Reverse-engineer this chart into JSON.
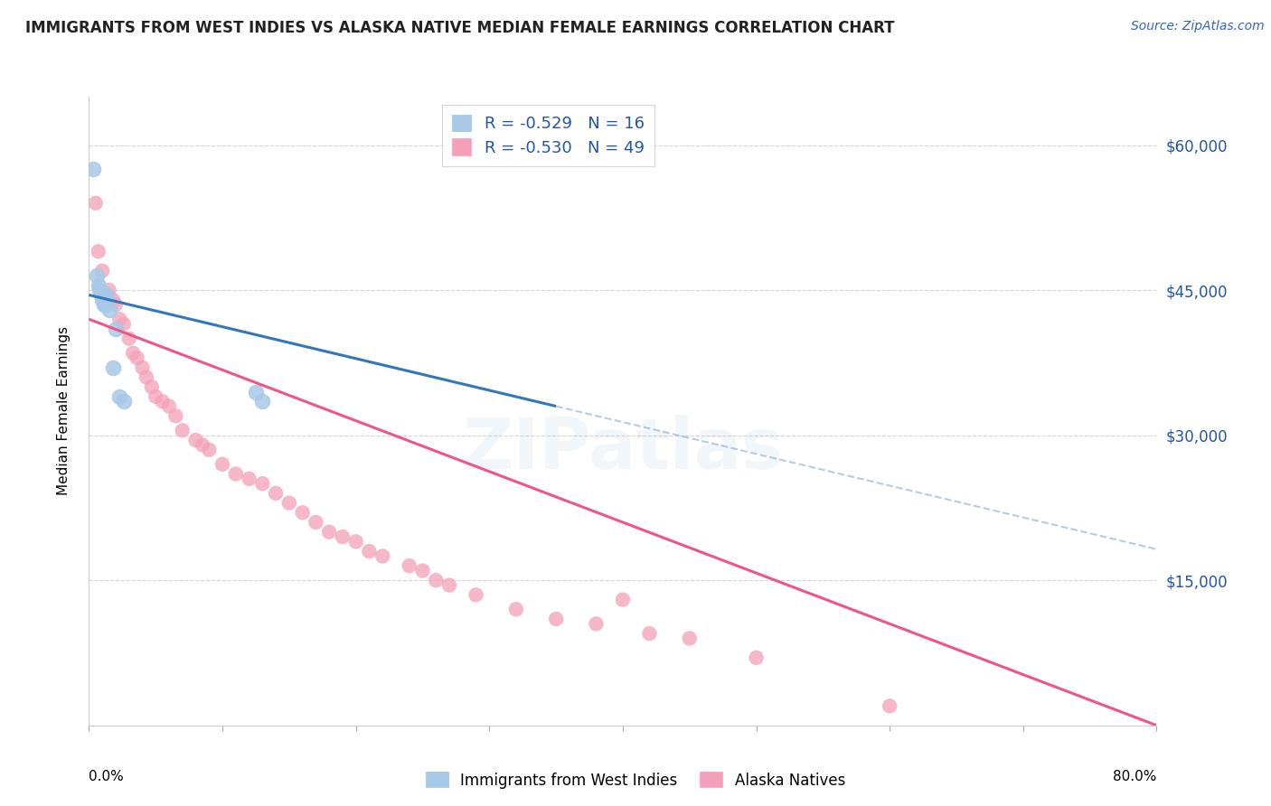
{
  "title": "IMMIGRANTS FROM WEST INDIES VS ALASKA NATIVE MEDIAN FEMALE EARNINGS CORRELATION CHART",
  "source": "Source: ZipAtlas.com",
  "ylabel": "Median Female Earnings",
  "y_ticks": [
    0,
    15000,
    30000,
    45000,
    60000
  ],
  "y_tick_labels": [
    "",
    "$15,000",
    "$30,000",
    "$45,000",
    "$60,000"
  ],
  "x_min": 0.0,
  "x_max": 80.0,
  "y_min": 0,
  "y_max": 65000,
  "color_blue": "#a8c8e8",
  "color_pink": "#f4a0b8",
  "color_blue_line": "#3377bb",
  "color_pink_line": "#ee5588",
  "color_blue_dash": "#88aacc",
  "watermark_text": "ZIPatlas",
  "west_indies_x": [
    0.3,
    0.6,
    0.7,
    0.8,
    0.9,
    1.0,
    1.1,
    1.2,
    1.3,
    1.5,
    1.8,
    2.0,
    2.3,
    2.6,
    12.5,
    13.0
  ],
  "west_indies_y": [
    57500,
    46500,
    45500,
    45000,
    44500,
    44000,
    43500,
    43500,
    44500,
    43000,
    37000,
    41000,
    34000,
    33500,
    34500,
    33500
  ],
  "alaska_x": [
    0.5,
    0.7,
    1.0,
    1.2,
    1.5,
    1.8,
    2.0,
    2.3,
    2.6,
    3.0,
    3.3,
    3.6,
    4.0,
    4.3,
    4.7,
    5.0,
    5.5,
    6.0,
    6.5,
    7.0,
    8.0,
    8.5,
    9.0,
    10.0,
    11.0,
    12.0,
    13.0,
    14.0,
    15.0,
    16.0,
    17.0,
    18.0,
    19.0,
    20.0,
    21.0,
    22.0,
    24.0,
    25.0,
    26.0,
    27.0,
    29.0,
    32.0,
    35.0,
    38.0,
    40.0,
    42.0,
    45.0,
    50.0,
    60.0
  ],
  "alaska_y": [
    54000,
    49000,
    47000,
    44500,
    45000,
    44000,
    43500,
    42000,
    41500,
    40000,
    38500,
    38000,
    37000,
    36000,
    35000,
    34000,
    33500,
    33000,
    32000,
    30500,
    29500,
    29000,
    28500,
    27000,
    26000,
    25500,
    25000,
    24000,
    23000,
    22000,
    21000,
    20000,
    19500,
    19000,
    18000,
    17500,
    16500,
    16000,
    15000,
    14500,
    13500,
    12000,
    11000,
    10500,
    13000,
    9500,
    9000,
    7000,
    2000
  ],
  "blue_line_x_start": 0.0,
  "blue_line_x_end": 35.0,
  "blue_dash_x_start": 35.0,
  "blue_dash_x_end": 80.0,
  "pink_line_x_start": 0.0,
  "pink_line_x_end": 80.0
}
